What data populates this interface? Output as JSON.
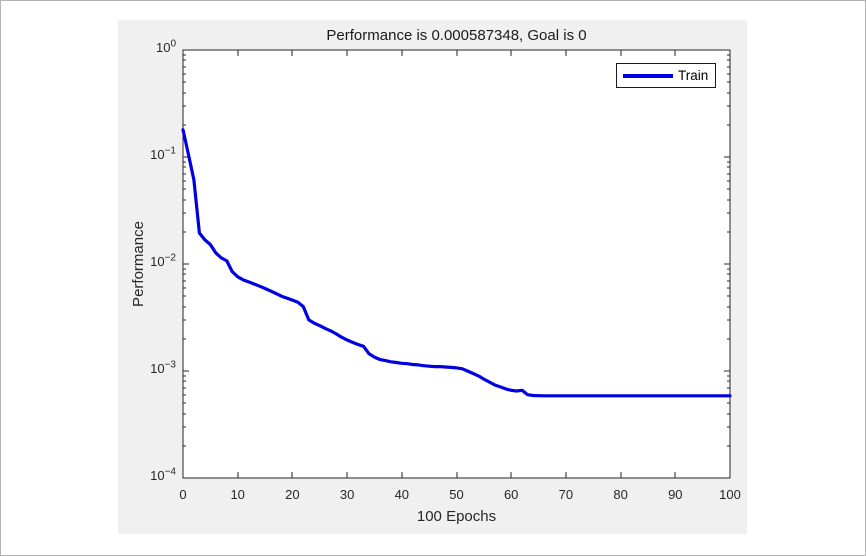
{
  "window": {
    "page_background": "#ffffff",
    "page_border_color": "#b3b3b3",
    "figure_background": "#f0f0f0"
  },
  "colors": {
    "plot_background": "#ffffff",
    "axis": "#262626",
    "tick_label": "#262626",
    "title_text": "#1a1a1a",
    "legend_border": "#1a1a1a",
    "legend_text": "#000000",
    "train_line": "#0000e0"
  },
  "chart_data": {
    "type": "line",
    "title": "Performance is 0.000587348, Goal is 0",
    "xlabel": "100 Epochs",
    "ylabel": "Performance",
    "yscale": "log",
    "grid": false,
    "legend_position": "top-right-inside",
    "xlim": [
      0,
      100
    ],
    "ylim": [
      0.0001,
      1
    ],
    "x_ticks": [
      0,
      10,
      20,
      30,
      40,
      50,
      60,
      70,
      80,
      90,
      100
    ],
    "y_tick_exponents": [
      0,
      -1,
      -2,
      -3,
      -4
    ],
    "best_performance": 0.000587348,
    "goal": 0,
    "x": [
      0,
      1,
      2,
      3,
      4,
      5,
      6,
      7,
      8,
      9,
      10,
      11,
      12,
      13,
      14,
      15,
      16,
      17,
      18,
      19,
      20,
      21,
      22,
      23,
      24,
      25,
      26,
      27,
      28,
      29,
      30,
      31,
      32,
      33,
      34,
      35,
      36,
      37,
      38,
      39,
      40,
      41,
      42,
      43,
      44,
      45,
      46,
      47,
      48,
      49,
      50,
      51,
      52,
      53,
      54,
      55,
      56,
      57,
      58,
      59,
      60,
      61,
      62,
      63,
      64,
      65,
      66,
      67,
      68,
      69,
      70,
      71,
      72,
      73,
      74,
      75,
      76,
      77,
      78,
      79,
      80,
      81,
      82,
      83,
      84,
      85,
      86,
      87,
      88,
      89,
      90,
      91,
      92,
      93,
      94,
      95,
      96,
      97,
      98,
      99,
      100
    ],
    "series": [
      {
        "name": "Train",
        "color": "#0000e0",
        "values": [
          0.18,
          0.105,
          0.061,
          0.0195,
          0.0168,
          0.0152,
          0.0127,
          0.0114,
          0.0107,
          0.0085,
          0.0076,
          0.0071,
          0.0068,
          0.0065,
          0.0062,
          0.0059,
          0.0056,
          0.0053,
          0.005,
          0.0048,
          0.0046,
          0.0044,
          0.004,
          0.003,
          0.0028,
          0.00265,
          0.0025,
          0.00237,
          0.00222,
          0.00207,
          0.00195,
          0.00185,
          0.00177,
          0.0017,
          0.00145,
          0.00135,
          0.00128,
          0.00125,
          0.00122,
          0.0012,
          0.00118,
          0.00117,
          0.00115,
          0.00114,
          0.00112,
          0.00111,
          0.0011,
          0.0011,
          0.00109,
          0.00108,
          0.00107,
          0.00105,
          0.001,
          0.00095,
          0.0009,
          0.00084,
          0.00079,
          0.00074,
          0.00071,
          0.00068,
          0.00066,
          0.00065,
          0.00066,
          0.0006,
          0.00059,
          0.000588,
          0.000587,
          0.000587,
          0.000587,
          0.000587,
          0.000587,
          0.000587,
          0.000587,
          0.000587,
          0.000587,
          0.000587,
          0.000587,
          0.000587,
          0.000587,
          0.000587,
          0.000587,
          0.000587,
          0.000587,
          0.000587,
          0.000587,
          0.000587,
          0.000587,
          0.000587,
          0.000587,
          0.000587,
          0.000587,
          0.000587,
          0.000587,
          0.000587,
          0.000587,
          0.000587,
          0.000587,
          0.000587,
          0.000587,
          0.000587,
          0.000587
        ]
      }
    ]
  }
}
